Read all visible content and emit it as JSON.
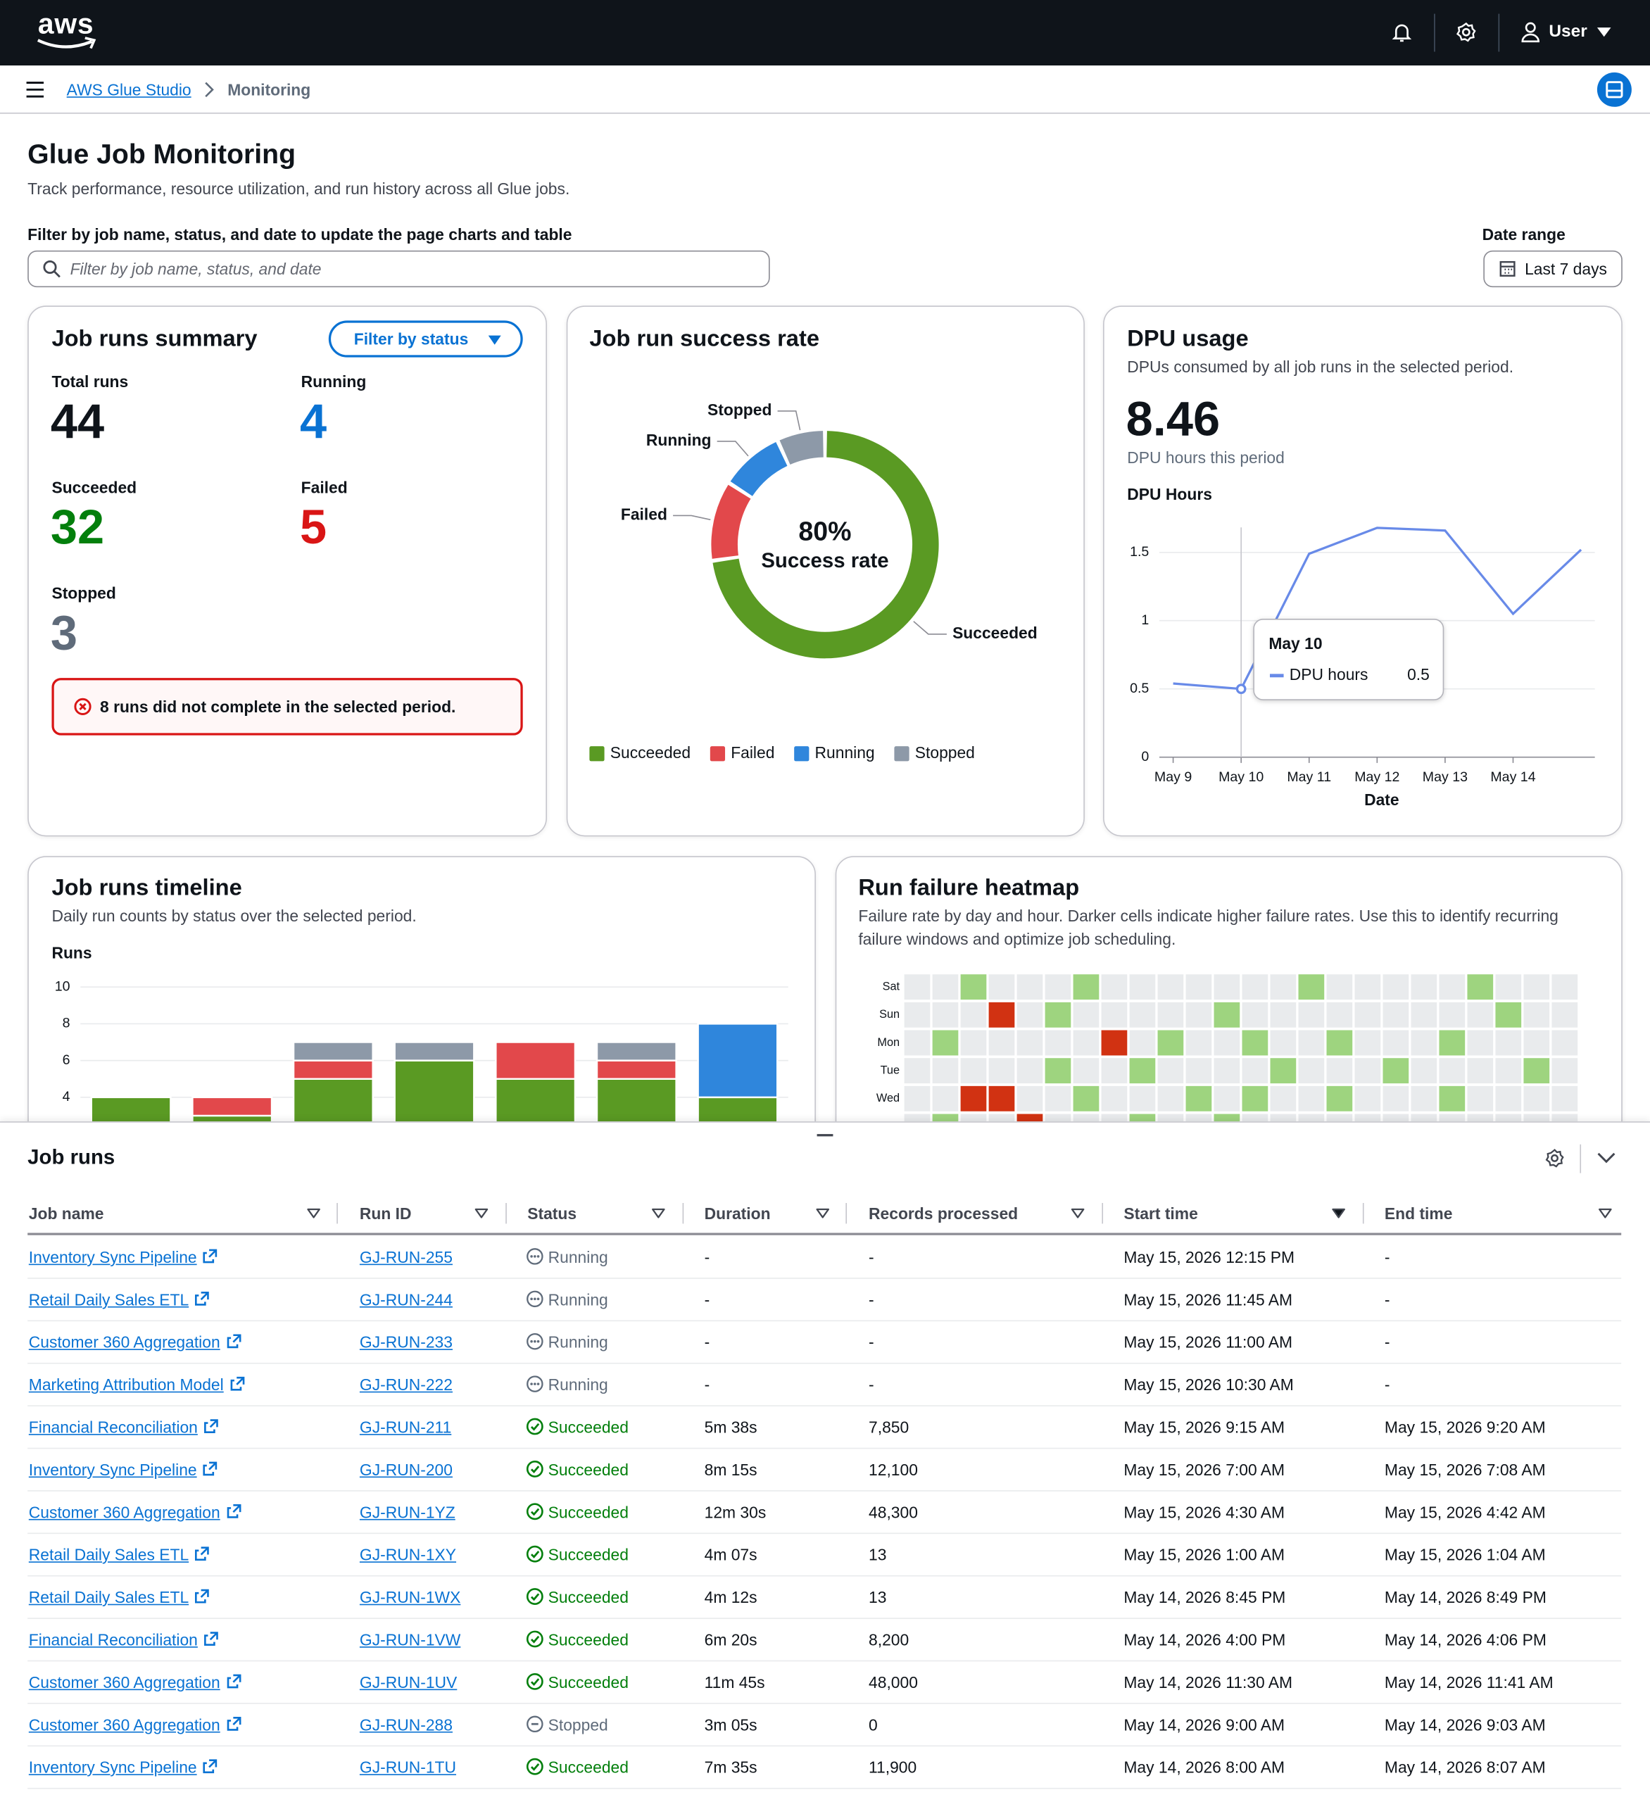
{
  "header": {
    "logo": "aws",
    "user": "User"
  },
  "breadcrumb": {
    "items": [
      "AWS Glue Studio",
      "Monitoring"
    ]
  },
  "page": {
    "title": "Glue Job Monitoring",
    "description": "Track performance, resource utilization, and run history across all Glue jobs.",
    "filter_label": "Filter by job name, status, and date to update the page charts and table",
    "filter_placeholder": "Filter by job name, status, and date",
    "date_range_label": "Date range",
    "date_range_value": "Last 7 days"
  },
  "summary": {
    "title": "Job runs summary",
    "filter_button": "Filter by status",
    "stats": [
      {
        "label": "Total runs",
        "value": 44
      },
      {
        "label": "Running",
        "value": 4
      },
      {
        "label": "Succeeded",
        "value": 32
      },
      {
        "label": "Failed",
        "value": 5
      },
      {
        "label": "Stopped",
        "value": 3
      }
    ],
    "alert": "8 runs did not complete in the selected period."
  },
  "chart_data": [
    {
      "type": "pie",
      "title": "Job run success rate",
      "center_value": "80%",
      "center_label": "Success rate",
      "categories": [
        "Succeeded",
        "Failed",
        "Running",
        "Stopped"
      ],
      "values": [
        32,
        5,
        4,
        3
      ],
      "colors": [
        "#5a9a23",
        "#e2484b",
        "#2f86dc",
        "#8d99a8"
      ],
      "legend": "bottom"
    },
    {
      "type": "line",
      "title": "DPU usage",
      "subtitle": "DPUs consumed by all job runs in the selected period.",
      "kpi_value": 8.46,
      "kpi_label": "DPU hours this period",
      "y_label": "DPU Hours",
      "x_label": "Date",
      "categories": [
        "May 9",
        "May 10",
        "May 11",
        "May 12",
        "May 13",
        "May 14",
        null
      ],
      "series": [
        {
          "name": "DPU hours",
          "color": "#688ae8",
          "values": [
            0.54,
            0.5,
            1.49,
            1.68,
            1.66,
            1.05,
            1.52
          ]
        }
      ],
      "ylim": [
        0,
        1.7
      ],
      "yticks": [
        0,
        0.5,
        1,
        1.5
      ],
      "grid": true,
      "tooltip_index": 1
    },
    {
      "type": "bar",
      "stacked": true,
      "title": "Job runs timeline",
      "subtitle": "Daily run counts by status over the selected period.",
      "y_label": "Runs",
      "categories": [
        null,
        null,
        null,
        null,
        null,
        null,
        null
      ],
      "series": [
        {
          "color": "#5a9a23",
          "values": [
            4,
            3,
            5,
            6,
            5,
            5,
            4
          ]
        },
        {
          "color": "#e2484b",
          "values": [
            0,
            1,
            1,
            0,
            2,
            1,
            0
          ]
        },
        {
          "color": "#2f86dc",
          "values": [
            0,
            0,
            0,
            0,
            0,
            0,
            4
          ]
        },
        {
          "color": "#8d99a8",
          "values": [
            0,
            0,
            1,
            1,
            0,
            1,
            0
          ]
        }
      ],
      "ylim": [
        0,
        10
      ],
      "yticks": [
        4,
        6,
        8,
        10
      ],
      "grid": true
    },
    {
      "type": "heatmap",
      "title": "Run failure heatmap",
      "subtitle": "Failure rate by day and hour. Darker cells indicate higher failure rates. Use this to identify recurring failure windows and optimize job scheduling.",
      "rows": [
        "Sat",
        "Sun",
        "Mon",
        "Tue",
        "Wed",
        null
      ],
      "values": [
        [
          0,
          0,
          1,
          0,
          0,
          0,
          1,
          0,
          0,
          0,
          0,
          0,
          0,
          0,
          1,
          0,
          0,
          0,
          0,
          0,
          1,
          0,
          0,
          0
        ],
        [
          0,
          0,
          0,
          2,
          0,
          1,
          0,
          0,
          0,
          0,
          0,
          1,
          0,
          0,
          0,
          0,
          0,
          0,
          0,
          0,
          0,
          1,
          0,
          0
        ],
        [
          0,
          1,
          0,
          0,
          0,
          0,
          0,
          2,
          0,
          1,
          0,
          0,
          1,
          0,
          0,
          1,
          0,
          0,
          0,
          1,
          0,
          0,
          0,
          0
        ],
        [
          0,
          0,
          0,
          0,
          0,
          1,
          0,
          0,
          1,
          0,
          0,
          0,
          0,
          1,
          0,
          0,
          0,
          1,
          0,
          0,
          0,
          0,
          1,
          0
        ],
        [
          0,
          0,
          2,
          2,
          0,
          0,
          1,
          0,
          0,
          0,
          1,
          0,
          1,
          0,
          0,
          1,
          0,
          0,
          0,
          1,
          0,
          0,
          0,
          0
        ],
        [
          0,
          1,
          0,
          0,
          2,
          0,
          0,
          0,
          1,
          0,
          0,
          1,
          0,
          0,
          0,
          0,
          0,
          0,
          0,
          0,
          0,
          0,
          0,
          0
        ]
      ],
      "colors": [
        "#e9ebed",
        "#9ed47f",
        "#d13212"
      ]
    }
  ],
  "table": {
    "title": "Job runs",
    "sort_column": 5,
    "columns": [
      "Job name",
      "Run ID",
      "Status",
      "Duration",
      "Records processed",
      "Start time",
      "End time"
    ],
    "rows": [
      [
        "Inventory Sync Pipeline",
        "GJ-RUN-255",
        "Running",
        "-",
        "-",
        "May 15, 2026 12:15 PM",
        "-"
      ],
      [
        "Retail Daily Sales ETL",
        "GJ-RUN-244",
        "Running",
        "-",
        "-",
        "May 15, 2026 11:45 AM",
        "-"
      ],
      [
        "Customer 360 Aggregation",
        "GJ-RUN-233",
        "Running",
        "-",
        "-",
        "May 15, 2026 11:00 AM",
        "-"
      ],
      [
        "Marketing Attribution Model",
        "GJ-RUN-222",
        "Running",
        "-",
        "-",
        "May 15, 2026 10:30 AM",
        "-"
      ],
      [
        "Financial Reconciliation",
        "GJ-RUN-211",
        "Succeeded",
        "5m 38s",
        "7,850",
        "May 15, 2026 9:15 AM",
        "May 15, 2026 9:20 AM"
      ],
      [
        "Inventory Sync Pipeline",
        "GJ-RUN-200",
        "Succeeded",
        "8m 15s",
        "12,100",
        "May 15, 2026 7:00 AM",
        "May 15, 2026 7:08 AM"
      ],
      [
        "Customer 360 Aggregation",
        "GJ-RUN-1YZ",
        "Succeeded",
        "12m 30s",
        "48,300",
        "May 15, 2026 4:30 AM",
        "May 15, 2026 4:42 AM"
      ],
      [
        "Retail Daily Sales ETL",
        "GJ-RUN-1XY",
        "Succeeded",
        "4m 07s",
        "13",
        "May 15, 2026 1:00 AM",
        "May 15, 2026 1:04 AM"
      ],
      [
        "Retail Daily Sales ETL",
        "GJ-RUN-1WX",
        "Succeeded",
        "4m 12s",
        "13",
        "May 14, 2026 8:45 PM",
        "May 14, 2026 8:49 PM"
      ],
      [
        "Financial Reconciliation",
        "GJ-RUN-1VW",
        "Succeeded",
        "6m 20s",
        "8,200",
        "May 14, 2026 4:00 PM",
        "May 14, 2026 4:06 PM"
      ],
      [
        "Customer 360 Aggregation",
        "GJ-RUN-1UV",
        "Succeeded",
        "11m 45s",
        "48,000",
        "May 14, 2026 11:30 AM",
        "May 14, 2026 11:41 AM"
      ],
      [
        "Customer 360 Aggregation",
        "GJ-RUN-288",
        "Stopped",
        "3m 05s",
        "0",
        "May 14, 2026 9:00 AM",
        "May 14, 2026 9:03 AM"
      ],
      [
        "Inventory Sync Pipeline",
        "GJ-RUN-1TU",
        "Succeeded",
        "7m 35s",
        "11,900",
        "May 14, 2026 8:00 AM",
        "May 14, 2026 8:07 AM"
      ]
    ]
  }
}
